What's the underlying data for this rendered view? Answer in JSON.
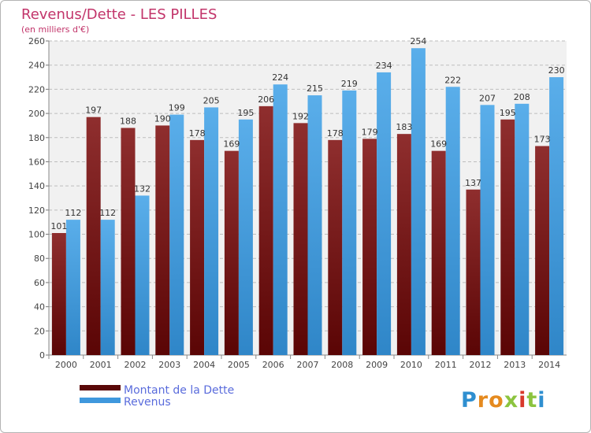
{
  "chart_data": {
    "type": "bar",
    "title": "Revenus/Dette - LES PILLES",
    "subtitle": "(en milliers d'€)",
    "categories": [
      "2000",
      "2001",
      "2002",
      "2003",
      "2004",
      "2005",
      "2006",
      "2007",
      "2008",
      "2009",
      "2010",
      "2011",
      "2012",
      "2013",
      "2014"
    ],
    "series": [
      {
        "name": "Montant de la Dette",
        "color": "#7a1c1c",
        "values": [
          101,
          197,
          188,
          190,
          178,
          169,
          206,
          192,
          178,
          179,
          183,
          169,
          137,
          195,
          173
        ]
      },
      {
        "name": "Revenus",
        "color": "#3f98dd",
        "values": [
          112,
          112,
          132,
          199,
          205,
          195,
          224,
          215,
          219,
          234,
          254,
          222,
          207,
          208,
          230
        ]
      }
    ],
    "ylim": [
      0,
      260
    ],
    "yticks": [
      0,
      20,
      40,
      60,
      80,
      100,
      120,
      140,
      160,
      180,
      200,
      220,
      240,
      260
    ],
    "grid": true,
    "legend_position": "bottom-left",
    "xlabel": "",
    "ylabel": ""
  },
  "logo": {
    "text": "Proxiti"
  }
}
